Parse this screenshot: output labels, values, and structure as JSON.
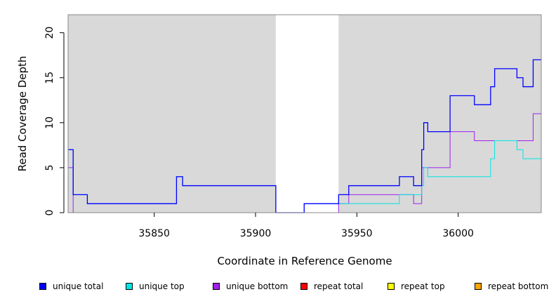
{
  "chart_data": {
    "type": "line",
    "xlabel": "Coordinate in Reference Genome",
    "ylabel": "Read Coverage Depth",
    "xlim": [
      35807.5,
      36041
    ],
    "ylim": [
      0,
      22
    ],
    "xticks": [
      35850,
      35900,
      35950,
      36000
    ],
    "yticks": [
      0,
      5,
      10,
      15,
      20
    ],
    "xtick_labels": [
      "35850",
      "35900",
      "35950",
      "36000"
    ],
    "ytick_labels": [
      "0",
      "5",
      "10",
      "15",
      "20"
    ],
    "shaded_regions": [
      [
        35807.5,
        35910
      ],
      [
        35941,
        36041
      ]
    ],
    "background_color": "#d9d9d9",
    "legend_position": "bottom",
    "series": [
      {
        "name": "unique total",
        "color": "#0000ff",
        "x": [
          35807.5,
          35810,
          35810,
          35817,
          35817,
          35861,
          35861,
          35864,
          35864,
          35910,
          35910,
          35924,
          35924,
          35941,
          35941,
          35946,
          35946,
          35971,
          35971,
          35978,
          35978,
          35982,
          35982,
          35983,
          35983,
          35985,
          35985,
          35996,
          35996,
          36008,
          36008,
          36016,
          36016,
          36018,
          36018,
          36029,
          36029,
          36032,
          36032,
          36037,
          36037,
          36041
        ],
        "values": [
          7,
          7,
          2,
          2,
          1,
          1,
          4,
          4,
          3,
          3,
          0,
          0,
          1,
          1,
          2,
          2,
          3,
          3,
          4,
          4,
          3,
          3,
          7,
          7,
          10,
          10,
          9,
          9,
          13,
          13,
          12,
          12,
          14,
          14,
          16,
          16,
          15,
          15,
          14,
          14,
          17,
          17
        ]
      },
      {
        "name": "unique top",
        "color": "#00e5e5",
        "x": [
          35807.5,
          35810,
          35810,
          35817,
          35817,
          35861,
          35861,
          35864,
          35864,
          35910,
          35910,
          35924,
          35924,
          35941,
          35941,
          35971,
          35971,
          35982,
          35982,
          35983,
          35983,
          35985,
          35985,
          36016,
          36016,
          36018,
          36018,
          36029,
          36029,
          36032,
          36032,
          36041
        ],
        "values": [
          7,
          7,
          2,
          2,
          1,
          1,
          4,
          4,
          3,
          3,
          0,
          0,
          1,
          1,
          1,
          1,
          2,
          2,
          3,
          3,
          5,
          5,
          4,
          4,
          6,
          6,
          8,
          8,
          7,
          7,
          6,
          6
        ]
      },
      {
        "name": "unique bottom",
        "color": "#a020f0",
        "x": [
          35807.5,
          35810,
          35810,
          35941,
          35941,
          35946,
          35946,
          35978,
          35978,
          35982,
          35982,
          35996,
          35996,
          36008,
          36008,
          36037,
          36037,
          36041
        ],
        "values": [
          5,
          5,
          0,
          0,
          1,
          1,
          2,
          2,
          1,
          1,
          5,
          5,
          9,
          9,
          8,
          8,
          11,
          11
        ]
      },
      {
        "name": "repeat total",
        "color": "#ff0000",
        "x": [
          35807.5,
          35941
        ],
        "values": [
          0,
          0
        ]
      },
      {
        "name": "repeat top",
        "color": "#ffff00",
        "x": [
          35941,
          36041
        ],
        "values": [
          0,
          0
        ]
      },
      {
        "name": "repeat bottom",
        "color": "#ffa500",
        "x": [
          35941,
          36041
        ],
        "values": [
          0,
          0
        ]
      }
    ]
  }
}
